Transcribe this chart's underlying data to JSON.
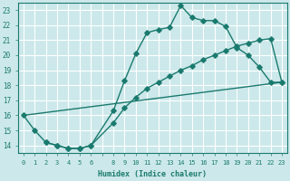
{
  "bg_color": "#cce8ea",
  "line_color": "#1a7a6e",
  "grid_color": "#ffffff",
  "xlabel": "Humidex (Indice chaleur)",
  "xlim": [
    -0.5,
    23.5
  ],
  "ylim": [
    13.5,
    23.5
  ],
  "line1_x": [
    0,
    1,
    2,
    3,
    4,
    5,
    6,
    8,
    9,
    10,
    11,
    12,
    13,
    14,
    15,
    16,
    17,
    18,
    19,
    20,
    21,
    22,
    23
  ],
  "line1_y": [
    16.0,
    15.0,
    14.2,
    14.0,
    13.8,
    13.8,
    14.0,
    16.3,
    18.3,
    20.1,
    21.5,
    21.7,
    21.85,
    23.3,
    22.5,
    22.3,
    22.3,
    21.9,
    20.5,
    20.0,
    19.2,
    18.2,
    18.2
  ],
  "line2_x": [
    0,
    23
  ],
  "line2_y": [
    16.0,
    18.2
  ],
  "line3_x": [
    2,
    3,
    4,
    5,
    6,
    8,
    9,
    10,
    11,
    12,
    13,
    14,
    15,
    16,
    17,
    18,
    19,
    20,
    21,
    22,
    23
  ],
  "line3_y": [
    14.2,
    14.0,
    13.8,
    13.8,
    14.0,
    15.5,
    16.5,
    17.2,
    17.8,
    18.2,
    18.6,
    19.0,
    19.3,
    19.7,
    20.0,
    20.3,
    20.6,
    20.8,
    21.0,
    21.1,
    18.2
  ]
}
